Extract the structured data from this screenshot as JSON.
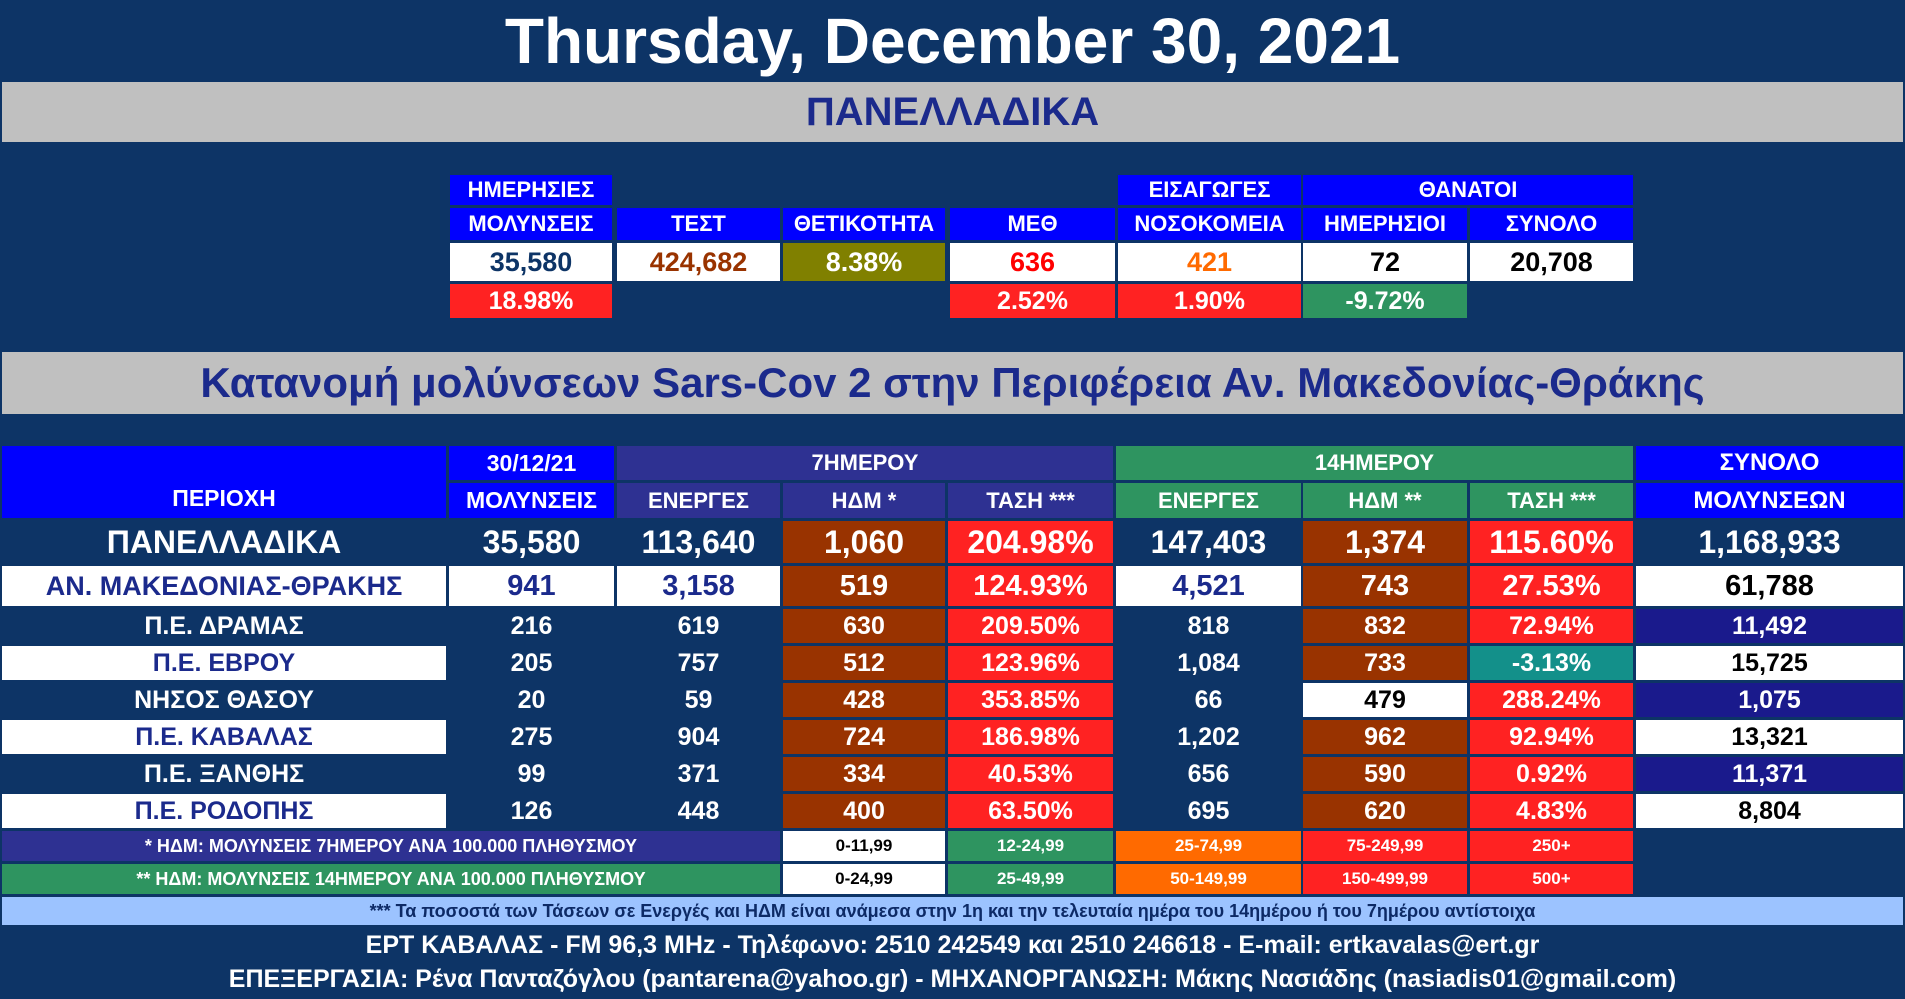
{
  "date": "Thursday, December 30, 2021",
  "national_band": "ΠΑΝΕΛΛΑΔΙΚΑ",
  "regional_band": "Κατανομή μολύνσεων Sars-Cov 2 στην Περιφέρεια Αν. Μακεδονίας-Θράκης",
  "summary": {
    "headers": {
      "daily_line1": "ΗΜΕΡΗΣΙΕΣ",
      "daily_line2": "ΜΟΛΥΝΣΕΙΣ",
      "tests": "ΤΕΣΤ",
      "positivity": "ΘΕΤΙΚΟΤΗΤΑ",
      "icu": "ΜΕΘ",
      "admissions_line1": "ΕΙΣΑΓΩΓΕΣ",
      "admissions_line2": "ΝΟΣΟΚΟΜΕΙΑ",
      "deaths": "ΘΑΝΑΤΟΙ",
      "deaths_daily": "ΗΜΕΡΗΣΙΟΙ",
      "deaths_total": "ΣΥΝΟΛΟ"
    },
    "values": {
      "daily": "35,580",
      "tests": "424,682",
      "positivity": "8.38%",
      "icu": "636",
      "admissions": "421",
      "deaths_daily": "72",
      "deaths_total": "20,708"
    },
    "changes": {
      "daily": "18.98%",
      "icu": "2.52%",
      "admissions": "1.90%",
      "deaths_daily": "-9.72%"
    }
  },
  "table": {
    "headers": {
      "region": "ΠΕΡΙΟΧΗ",
      "date": "30/12/21",
      "infections": "ΜΟΛΥΝΣΕΙΣ",
      "week": "7ΗΜΕΡΟΥ",
      "fortnight": "14ΗΜΕΡΟΥ",
      "total_line1": "ΣΥΝΟΛΟ",
      "total_line2": "ΜΟΛΥΝΣΕΩΝ",
      "active": "ΕΝΕΡΓΕΣ",
      "ndm7": "ΗΔΜ *",
      "trend7": "ΤΑΣΗ ***",
      "active14": "ΕΝΕΡΓΕΣ",
      "ndm14": "ΗΔΜ **",
      "trend14": "ΤΑΣΗ ***"
    },
    "rows": [
      {
        "name": "ΠΑΝΕΛΛΑΔΙΚΑ",
        "infections": "35,580",
        "active7": "113,640",
        "ndm7": "1,060",
        "trend7": "204.98%",
        "active14": "147,403",
        "ndm14": "1,374",
        "trend14": "115.60%",
        "total": "1,168,933"
      },
      {
        "name": "ΑΝ. ΜΑΚΕΔΟΝΙΑΣ-ΘΡΑΚΗΣ",
        "infections": "941",
        "active7": "3,158",
        "ndm7": "519",
        "trend7": "124.93%",
        "active14": "4,521",
        "ndm14": "743",
        "trend14": "27.53%",
        "total": "61,788"
      },
      {
        "name": "Π.Ε. ΔΡΑΜΑΣ",
        "infections": "216",
        "active7": "619",
        "ndm7": "630",
        "trend7": "209.50%",
        "active14": "818",
        "ndm14": "832",
        "trend14": "72.94%",
        "total": "11,492"
      },
      {
        "name": "Π.Ε. ΕΒΡΟΥ",
        "infections": "205",
        "active7": "757",
        "ndm7": "512",
        "trend7": "123.96%",
        "active14": "1,084",
        "ndm14": "733",
        "trend14": "-3.13%",
        "total": "15,725"
      },
      {
        "name": "ΝΗΣΟΣ ΘΑΣΟΥ",
        "infections": "20",
        "active7": "59",
        "ndm7": "428",
        "trend7": "353.85%",
        "active14": "66",
        "ndm14": "479",
        "trend14": "288.24%",
        "total": "1,075"
      },
      {
        "name": "Π.Ε. ΚΑΒΑΛΑΣ",
        "infections": "275",
        "active7": "904",
        "ndm7": "724",
        "trend7": "186.98%",
        "active14": "1,202",
        "ndm14": "962",
        "trend14": "92.94%",
        "total": "13,321"
      },
      {
        "name": "Π.Ε. ΞΑΝΘΗΣ",
        "infections": "99",
        "active7": "371",
        "ndm7": "334",
        "trend7": "40.53%",
        "active14": "656",
        "ndm14": "590",
        "trend14": "0.92%",
        "total": "11,371"
      },
      {
        "name": "Π.Ε. ΡΟΔΟΠΗΣ",
        "infections": "126",
        "active7": "448",
        "ndm7": "400",
        "trend7": "63.50%",
        "active14": "695",
        "ndm14": "620",
        "trend14": "4.83%",
        "total": "8,804"
      }
    ]
  },
  "legend": {
    "ndm7_label": "* ΗΔΜ: ΜΟΛΥΝΣΕΙΣ 7ΗΜΕΡΟΥ ΑΝΑ 100.000 ΠΛΗΘΥΣΜΟΥ",
    "ndm7_ranges": [
      "0-11,99",
      "12-24,99",
      "25-74,99",
      "75-249,99",
      "250+"
    ],
    "ndm14_label": "** ΗΔΜ: ΜΟΛΥΝΣΕΙΣ 14ΗΜΕΡΟΥ ΑΝΑ 100.000 ΠΛΗΘΥΣΜΟΥ",
    "ndm14_ranges": [
      "0-24,99",
      "25-49,99",
      "50-149,99",
      "150-499,99",
      "500+"
    ]
  },
  "note": "*** Τα ποσοστά των Τάσεων σε Ενεργές και ΗΔΜ είναι ανάμεσα στην 1η και την τελευταία ημέρα του 14ημέρου ή του 7ημέρου αντίστοιχα",
  "footer": {
    "line1": "ΕΡΤ ΚΑΒΑΛΑΣ - FM 96,3 MHz - Τηλέφωνο:  2510 242549 και 2510 246618 - E-mail: ertkavalas@ert.gr",
    "line2": "ΕΠΕΞΕΡΓΑΣΙΑ: Ρένα Πανταζόγλου (pantarena@yahoo.gr) - ΜΗΧΑΝΟΡΓΑΝΩΣΗ: Μάκης Νασιάδης (nasiadis01@gmail.com)"
  },
  "colors": {
    "background": "#0d3466",
    "header_blue": "#0000ff",
    "band_gray": "#c0c0c0",
    "band_text": "#1b2a8c",
    "red": "#ff2222",
    "brown": "#993300",
    "olive": "#808000",
    "green": "#2e9460",
    "indigo": "#2e3192",
    "teal": "#13908a",
    "orange": "#ff6a00"
  }
}
